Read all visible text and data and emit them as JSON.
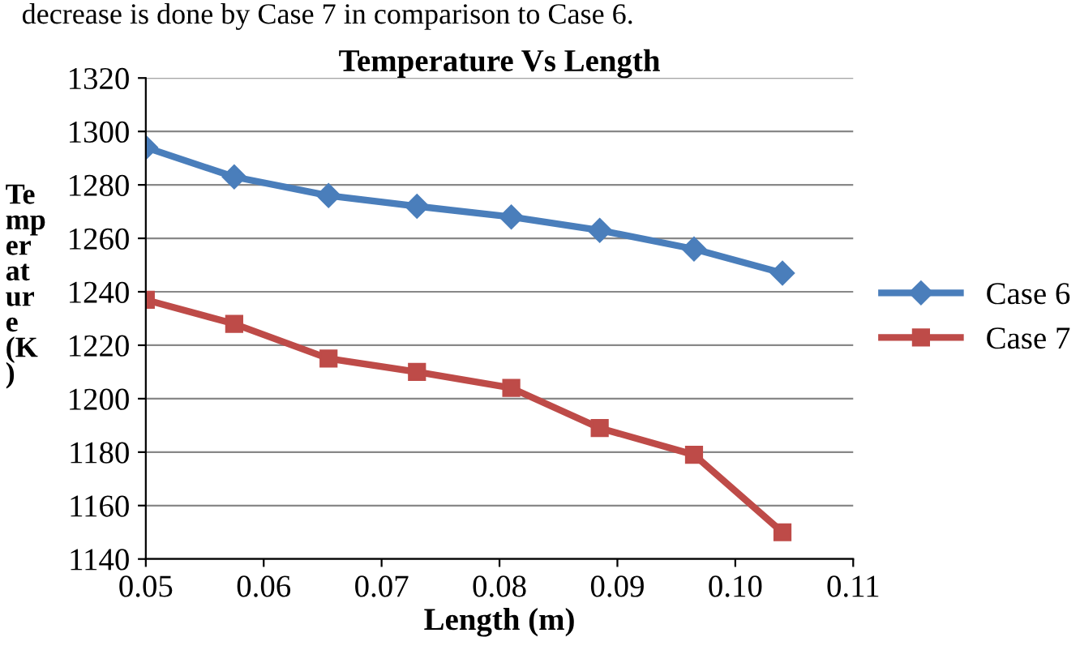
{
  "chart_data": {
    "type": "line",
    "title": "Temperature Vs Length",
    "xlabel": "Length (m)",
    "ylabel": "Temperature (K)",
    "annotations": [
      "decrease is done by Case 7 in comparison to Case 6."
    ],
    "series": [
      {
        "name": "Case 6",
        "color": "#4a7ebb",
        "x": [
          0.05,
          0.0575,
          0.0655,
          0.073,
          0.081,
          0.0885,
          0.0965,
          0.104
        ],
        "values": [
          1294,
          1283,
          1276,
          1272,
          1268,
          1263,
          1256,
          1247
        ],
        "marker": "diamond"
      },
      {
        "name": "Case 7",
        "color": "#be4b48",
        "x": [
          0.05,
          0.0575,
          0.0655,
          0.073,
          0.081,
          0.0885,
          0.0965,
          0.104
        ],
        "values": [
          1237,
          1228,
          1215,
          1210,
          1204,
          1189,
          1179,
          1150
        ],
        "marker": "square"
      }
    ],
    "xlim": [
      0.05,
      0.11
    ],
    "xticks": [
      {
        "value": 0.05,
        "label": "0.05"
      },
      {
        "value": 0.06,
        "label": "0.06"
      },
      {
        "value": 0.07,
        "label": "0.07"
      },
      {
        "value": 0.08,
        "label": "0.08"
      },
      {
        "value": 0.09,
        "label": "0.09"
      },
      {
        "value": 0.1,
        "label": "0.10"
      },
      {
        "value": 0.11,
        "label": "0.11"
      }
    ],
    "ylim": [
      1140,
      1320
    ],
    "yticks": [
      1140,
      1160,
      1180,
      1200,
      1220,
      1240,
      1260,
      1280,
      1300,
      1320
    ],
    "grid": "y",
    "legend": "right",
    "line_style": "solid"
  }
}
